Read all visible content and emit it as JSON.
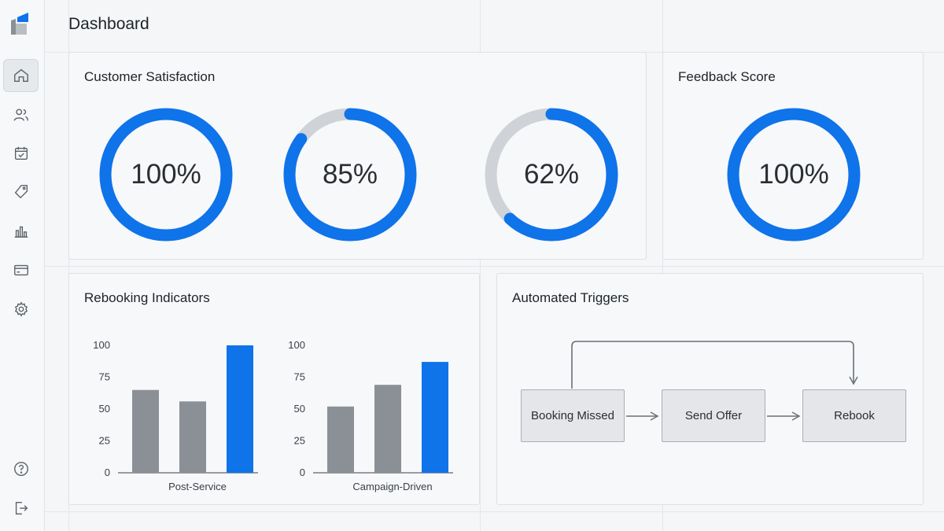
{
  "page": {
    "title": "Dashboard"
  },
  "sidebar": {
    "items": [
      {
        "icon": "home-icon",
        "active": true
      },
      {
        "icon": "users-icon",
        "active": false
      },
      {
        "icon": "calendar-check-icon",
        "active": false
      },
      {
        "icon": "tag-icon",
        "active": false
      },
      {
        "icon": "bar-chart-icon",
        "active": false
      },
      {
        "icon": "credit-card-icon",
        "active": false
      },
      {
        "icon": "gear-icon",
        "active": false
      }
    ],
    "bottom": [
      {
        "icon": "help-icon"
      },
      {
        "icon": "logout-icon"
      }
    ]
  },
  "colors": {
    "accent": "#0f73ea",
    "track": "#cfd3d7",
    "bar_gray": "#8a9096",
    "bar_blue": "#0f73ea"
  },
  "satisfaction": {
    "title": "Customer Satisfaction",
    "rings": [
      {
        "value": 100,
        "label": "100%"
      },
      {
        "value": 85,
        "label": "85%"
      },
      {
        "value": 62,
        "label": "62%"
      }
    ]
  },
  "feedback": {
    "title": "Feedback Score",
    "ring": {
      "value": 100,
      "label": "100%"
    }
  },
  "rebooking": {
    "title": "Rebooking Indicators",
    "chart_data": [
      {
        "type": "bar",
        "categories": [
          "",
          "",
          ""
        ],
        "xlabel": "Post-Service",
        "values": [
          65,
          56,
          100
        ],
        "colors": [
          "#8a9096",
          "#8a9096",
          "#0f73ea"
        ],
        "yticks": [
          "0",
          "25",
          "50",
          "75",
          "100"
        ],
        "ylim": [
          0,
          100
        ]
      },
      {
        "type": "bar",
        "categories": [
          "",
          "",
          ""
        ],
        "xlabel": "Campaign-Driven",
        "values": [
          52,
          69,
          87
        ],
        "colors": [
          "#8a9096",
          "#8a9096",
          "#0f73ea"
        ],
        "yticks": [
          "0",
          "25",
          "50",
          "75",
          "100"
        ],
        "ylim": [
          0,
          100
        ]
      }
    ]
  },
  "triggers": {
    "title": "Automated Triggers",
    "steps": [
      "Booking Missed",
      "Send Offer",
      "Rebook"
    ]
  }
}
